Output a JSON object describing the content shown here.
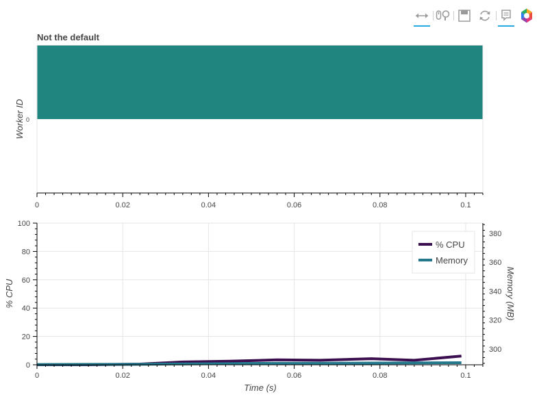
{
  "toolbar": {
    "tools": [
      {
        "name": "xpan-tool",
        "icon": "horizontal-pan-icon",
        "active": true
      },
      {
        "name": "xwheel-zoom-tool",
        "icon": "wheel-zoom-icon",
        "active": false
      },
      {
        "name": "save-tool",
        "icon": "save-icon",
        "active": false
      },
      {
        "name": "reset-tool",
        "icon": "reset-icon",
        "active": false
      },
      {
        "name": "hover-tool",
        "icon": "hover-tooltip-icon",
        "active": true
      },
      {
        "name": "bokeh-logo",
        "icon": "bokeh-logo-icon",
        "active": false
      }
    ]
  },
  "chart_data": [
    {
      "type": "bar",
      "orientation": "horizontal",
      "title": "Not the default",
      "xlabel": "",
      "ylabel": "Worker ID",
      "xlim": [
        0,
        0.104
      ],
      "ylim": [
        -0.5,
        0.5
      ],
      "x_ticks": [
        "0",
        "0.02",
        "0.04",
        "0.06",
        "0.08",
        "0.1"
      ],
      "y_ticks": [
        "0"
      ],
      "bars": [
        {
          "worker": 0,
          "y_bottom": 0,
          "y_top": 0.5,
          "start": 0,
          "end": 0.104,
          "color": "#20847f"
        }
      ],
      "grid": false
    },
    {
      "type": "line",
      "title": "",
      "xlabel": "Time (s)",
      "ylabel": "% CPU",
      "y2label": "Memory (MB)",
      "xlim": [
        0,
        0.104
      ],
      "ylim": [
        0,
        100
      ],
      "y2lim": [
        289,
        387
      ],
      "x_ticks": [
        "0",
        "0.02",
        "0.04",
        "0.06",
        "0.08",
        "0.1"
      ],
      "y_ticks": [
        "0",
        "20",
        "40",
        "60",
        "80",
        "100"
      ],
      "y2_ticks": [
        "300",
        "320",
        "340",
        "360",
        "380"
      ],
      "grid": true,
      "legend_position": "top-right",
      "series": [
        {
          "name": "% CPU",
          "axis": "left",
          "color": "#3b0f4f",
          "x": [
            0,
            0.012,
            0.024,
            0.034,
            0.045,
            0.056,
            0.066,
            0.078,
            0.088,
            0.099
          ],
          "y": [
            0,
            0,
            0.5,
            2,
            2.5,
            3.5,
            3.2,
            4.3,
            3.2,
            6.2
          ]
        },
        {
          "name": "Memory",
          "axis": "right",
          "color": "#24788c",
          "x": [
            0,
            0.012,
            0.024,
            0.034,
            0.045,
            0.056,
            0.066,
            0.078,
            0.088,
            0.099
          ],
          "y": [
            289.2,
            289.3,
            289.4,
            289.6,
            289.8,
            290.0,
            290.1,
            290.2,
            290.3,
            290.4
          ]
        }
      ]
    }
  ]
}
